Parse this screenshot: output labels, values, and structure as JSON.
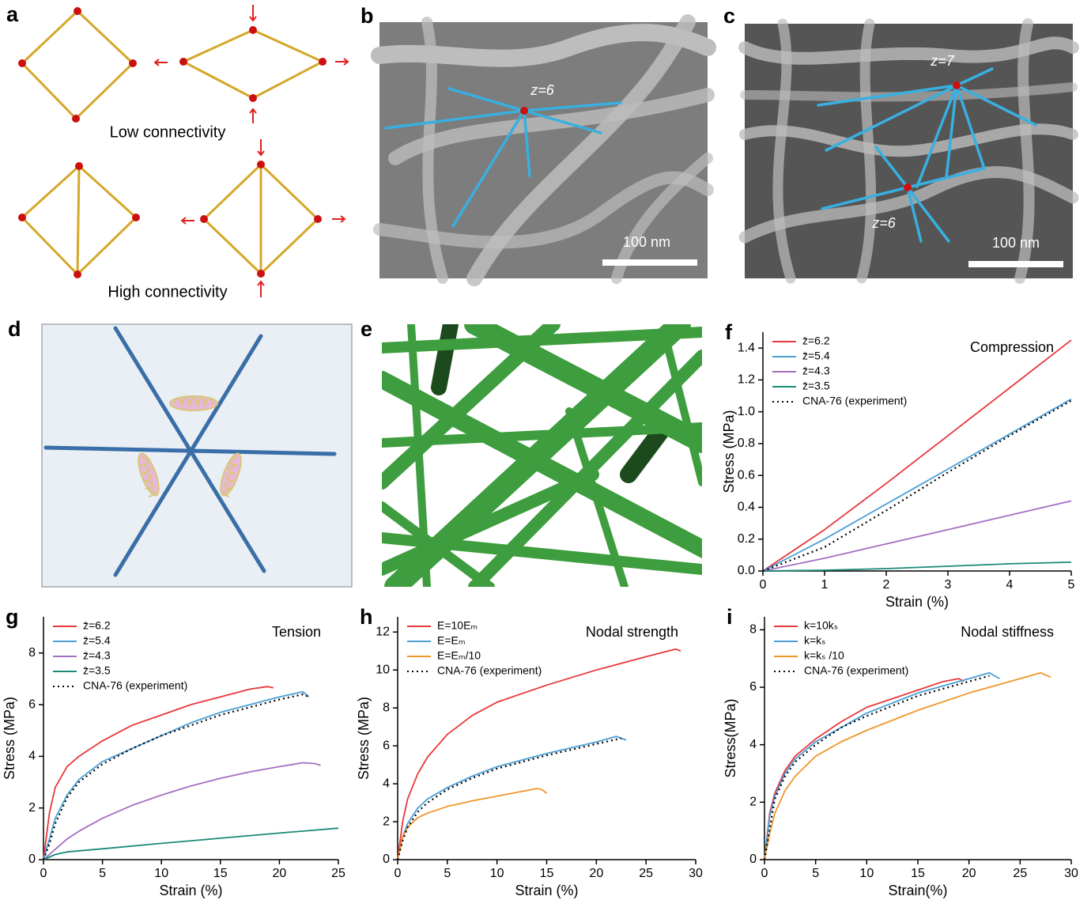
{
  "panel_a": {
    "label": "a",
    "captions": [
      "Low connectivity",
      "High connectivity"
    ]
  },
  "panel_b": {
    "label": "b",
    "annotations": [
      "z=6"
    ],
    "scale_bar": "100 nm"
  },
  "panel_c": {
    "label": "c",
    "annotations": [
      "z=7",
      "z=6"
    ],
    "scale_bar": "100 nm"
  },
  "panel_d": {
    "label": "d"
  },
  "panel_e": {
    "label": "e"
  },
  "chart_data": [
    {
      "type": "line",
      "panel": "f",
      "annotation": "Compression",
      "xlabel": "Strain (%)",
      "ylabel": "Stress (MPa)",
      "xlim": [
        0,
        5
      ],
      "xticks": [
        0,
        1,
        2,
        3,
        4,
        5
      ],
      "ylim": [
        0,
        1.5
      ],
      "yticks": [
        {
          "value": 0,
          "label": "0.0"
        },
        0.2,
        0.4,
        0.6,
        0.8,
        {
          "value": 1,
          "label": "1.0"
        },
        1.2,
        1.4
      ],
      "legend": "upper-left",
      "series": [
        {
          "name": "z̄=6.2",
          "color": "#e8373a",
          "x": [
            0,
            1,
            2,
            3,
            4,
            5
          ],
          "values": [
            0,
            0.26,
            0.55,
            0.85,
            1.15,
            1.45
          ]
        },
        {
          "name": "z̄=5.4",
          "color": "#4a9fd5",
          "x": [
            0,
            1,
            2,
            3,
            4,
            5
          ],
          "values": [
            0,
            0.2,
            0.42,
            0.64,
            0.86,
            1.08
          ]
        },
        {
          "name": "z̄=4.3",
          "color": "#a46fc0",
          "x": [
            0,
            1,
            2,
            3,
            4,
            5
          ],
          "values": [
            0,
            0.08,
            0.17,
            0.26,
            0.35,
            0.44
          ]
        },
        {
          "name": "z̄=3.5",
          "color": "#1a8a78",
          "x": [
            0,
            1,
            2,
            3,
            4,
            5
          ],
          "values": [
            0,
            0.005,
            0.015,
            0.03,
            0.045,
            0.055
          ]
        },
        {
          "name": "CNA-76 (experiment)",
          "color": "#000000",
          "dashed": true,
          "x": [
            0,
            1,
            2,
            3,
            4,
            5
          ],
          "values": [
            0,
            0.15,
            0.38,
            0.62,
            0.85,
            1.07
          ]
        }
      ]
    },
    {
      "type": "line",
      "panel": "g",
      "annotation": "Tension",
      "xlabel": "Strain (%)",
      "ylabel": "Stress (MPa)",
      "xlim": [
        0,
        25
      ],
      "xticks": [
        0,
        5,
        10,
        15,
        20,
        25
      ],
      "ylim": [
        0,
        9.4
      ],
      "yticks": [
        0,
        2,
        4,
        6,
        8
      ],
      "legend": "upper-left",
      "series": [
        {
          "name": "z̄=6.2",
          "color": "#e8373a",
          "x": [
            0,
            0.5,
            1,
            2,
            3,
            5,
            7.5,
            10,
            12.5,
            15,
            17.5,
            19,
            19.5
          ],
          "values": [
            0,
            1.8,
            2.8,
            3.6,
            4.0,
            4.6,
            5.2,
            5.6,
            6.0,
            6.3,
            6.6,
            6.7,
            6.65
          ]
        },
        {
          "name": "z̄=5.4",
          "color": "#4a9fd5",
          "x": [
            0,
            0.5,
            1,
            2,
            3,
            5,
            7.5,
            10,
            12.5,
            15,
            17.5,
            20,
            22,
            22.5
          ],
          "values": [
            0,
            0.8,
            1.6,
            2.5,
            3.1,
            3.8,
            4.3,
            4.8,
            5.3,
            5.7,
            6.0,
            6.3,
            6.5,
            6.3
          ]
        },
        {
          "name": "z̄=4.3",
          "color": "#a46fc0",
          "x": [
            0,
            1,
            2,
            3,
            5,
            7.5,
            10,
            12.5,
            15,
            17.5,
            20,
            22,
            23,
            23.5
          ],
          "values": [
            0,
            0.4,
            0.8,
            1.1,
            1.6,
            2.1,
            2.5,
            2.85,
            3.15,
            3.4,
            3.6,
            3.75,
            3.72,
            3.65
          ]
        },
        {
          "name": "z̄=3.5",
          "color": "#1a8a78",
          "x": [
            0,
            1,
            2,
            5,
            10,
            15,
            20,
            25
          ],
          "values": [
            0,
            0.2,
            0.3,
            0.42,
            0.63,
            0.83,
            1.03,
            1.22
          ]
        },
        {
          "name": "CNA-76 (experiment)",
          "color": "#000000",
          "dashed": true,
          "x": [
            0,
            0.5,
            1,
            2,
            3,
            5,
            7.5,
            10,
            12.5,
            15,
            17.5,
            20,
            22,
            22.5
          ],
          "values": [
            0,
            0.6,
            1.4,
            2.4,
            3.0,
            3.7,
            4.3,
            4.8,
            5.2,
            5.6,
            5.9,
            6.2,
            6.4,
            6.3
          ]
        }
      ]
    },
    {
      "type": "line",
      "panel": "h",
      "annotation": "Nodal strength",
      "xlabel": "Strain (%)",
      "ylabel": "Stress (MPa)",
      "xlim": [
        0,
        30
      ],
      "xticks": [
        0,
        5,
        10,
        15,
        20,
        25,
        30
      ],
      "ylim": [
        0,
        12.8
      ],
      "yticks": [
        0,
        2,
        4,
        6,
        8,
        10,
        12
      ],
      "legend": "upper-left",
      "series": [
        {
          "name": "E=10Eₘ",
          "color": "#e8373a",
          "x": [
            0,
            0.5,
            1,
            2,
            3,
            5,
            7.5,
            10,
            15,
            20,
            25,
            28,
            28.5
          ],
          "values": [
            0,
            2,
            3.2,
            4.5,
            5.4,
            6.6,
            7.6,
            8.3,
            9.2,
            10.0,
            10.7,
            11.1,
            11.0
          ]
        },
        {
          "name": "E=Eₘ",
          "color": "#4a9fd5",
          "x": [
            0,
            0.5,
            1,
            2,
            3,
            5,
            7.5,
            10,
            15,
            20,
            22,
            23
          ],
          "values": [
            0,
            1.2,
            1.9,
            2.7,
            3.2,
            3.8,
            4.4,
            4.9,
            5.6,
            6.2,
            6.5,
            6.3
          ]
        },
        {
          "name": "E=Eₘ/10",
          "color": "#f0962a",
          "x": [
            0,
            0.5,
            1,
            2,
            3,
            5,
            7.5,
            10,
            12.5,
            14,
            14.5,
            15
          ],
          "values": [
            0,
            1.2,
            1.7,
            2.2,
            2.45,
            2.8,
            3.1,
            3.35,
            3.6,
            3.75,
            3.7,
            3.5
          ]
        },
        {
          "name": "CNA-76 (experiment)",
          "color": "#000000",
          "dashed": true,
          "x": [
            0,
            0.5,
            1,
            2,
            3,
            5,
            7.5,
            10,
            15,
            20,
            22.5
          ],
          "values": [
            0,
            1.0,
            1.7,
            2.5,
            3.0,
            3.7,
            4.3,
            4.8,
            5.5,
            6.1,
            6.4
          ]
        }
      ]
    },
    {
      "type": "line",
      "panel": "i",
      "annotation": "Nodal stiffness",
      "xlabel": "Strain(%)",
      "ylabel": "Stress(MPa)",
      "xlim": [
        0,
        30
      ],
      "xticks": [
        0,
        5,
        10,
        15,
        20,
        25,
        30
      ],
      "ylim": [
        0,
        8.45
      ],
      "yticks": [
        0,
        2,
        4,
        6,
        8
      ],
      "legend": "upper-left",
      "series": [
        {
          "name": "k=10kₛ",
          "color": "#e8373a",
          "x": [
            0,
            0.5,
            1,
            2,
            3,
            5,
            7.5,
            10,
            12.5,
            15,
            17.5,
            19,
            19.5
          ],
          "values": [
            0,
            1.6,
            2.3,
            3.1,
            3.6,
            4.2,
            4.8,
            5.3,
            5.6,
            5.9,
            6.2,
            6.3,
            6.2
          ]
        },
        {
          "name": "k=kₛ",
          "color": "#4a9fd5",
          "x": [
            0,
            0.5,
            1,
            2,
            3,
            5,
            7.5,
            10,
            15,
            20,
            22,
            23
          ],
          "values": [
            0,
            1.5,
            2.2,
            3.0,
            3.5,
            4.1,
            4.6,
            5.1,
            5.8,
            6.3,
            6.5,
            6.3
          ]
        },
        {
          "name": "k=kₛ /10",
          "color": "#f0962a",
          "x": [
            0,
            0.5,
            1,
            2,
            3,
            5,
            7.5,
            10,
            15,
            20,
            25,
            27,
            28
          ],
          "values": [
            0,
            0.9,
            1.6,
            2.4,
            2.9,
            3.6,
            4.1,
            4.5,
            5.2,
            5.8,
            6.3,
            6.5,
            6.35
          ]
        },
        {
          "name": "CNA-76 (experiment)",
          "color": "#000000",
          "dashed": true,
          "x": [
            0,
            1,
            2,
            3,
            5,
            7.5,
            10,
            15,
            20,
            22
          ],
          "values": [
            0,
            2.1,
            2.9,
            3.4,
            4.0,
            4.6,
            5.0,
            5.7,
            6.2,
            6.4
          ]
        }
      ]
    }
  ]
}
